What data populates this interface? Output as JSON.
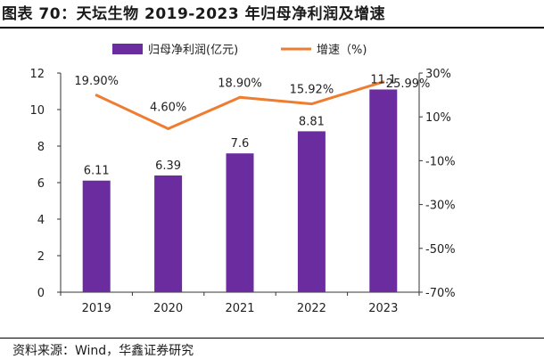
{
  "figure": {
    "title": "图表 70：天坛生物 2019-2023 年归母净利润及增速",
    "source": "资料来源：Wind，华鑫证券研究"
  },
  "chart_data": {
    "type": "bar+line",
    "categories": [
      "2019",
      "2020",
      "2021",
      "2022",
      "2023"
    ],
    "series": [
      {
        "name": "归母净利润(亿元)",
        "type": "bar",
        "axis": "left",
        "color": "#6a2c9e",
        "values": [
          6.11,
          6.39,
          7.6,
          8.81,
          11.1
        ],
        "labels": [
          "6.11",
          "6.39",
          "7.6",
          "8.81",
          "11.1"
        ]
      },
      {
        "name": "增速（%)",
        "type": "line",
        "axis": "right",
        "color": "#ee7d31",
        "values": [
          19.9,
          4.6,
          18.9,
          15.92,
          25.99
        ],
        "labels": [
          "19.90%",
          "4.60%",
          "18.90%",
          "15.92%",
          "25.99%"
        ]
      }
    ],
    "y_left": {
      "min": 0,
      "max": 12,
      "ticks": [
        "0",
        "2",
        "4",
        "6",
        "8",
        "10",
        "12"
      ]
    },
    "y_right": {
      "min": -70,
      "max": 30,
      "ticks": [
        "-70%",
        "-50%",
        "-30%",
        "-10%",
        "10%",
        "30%"
      ]
    },
    "legend_position": "top",
    "grid": false
  }
}
